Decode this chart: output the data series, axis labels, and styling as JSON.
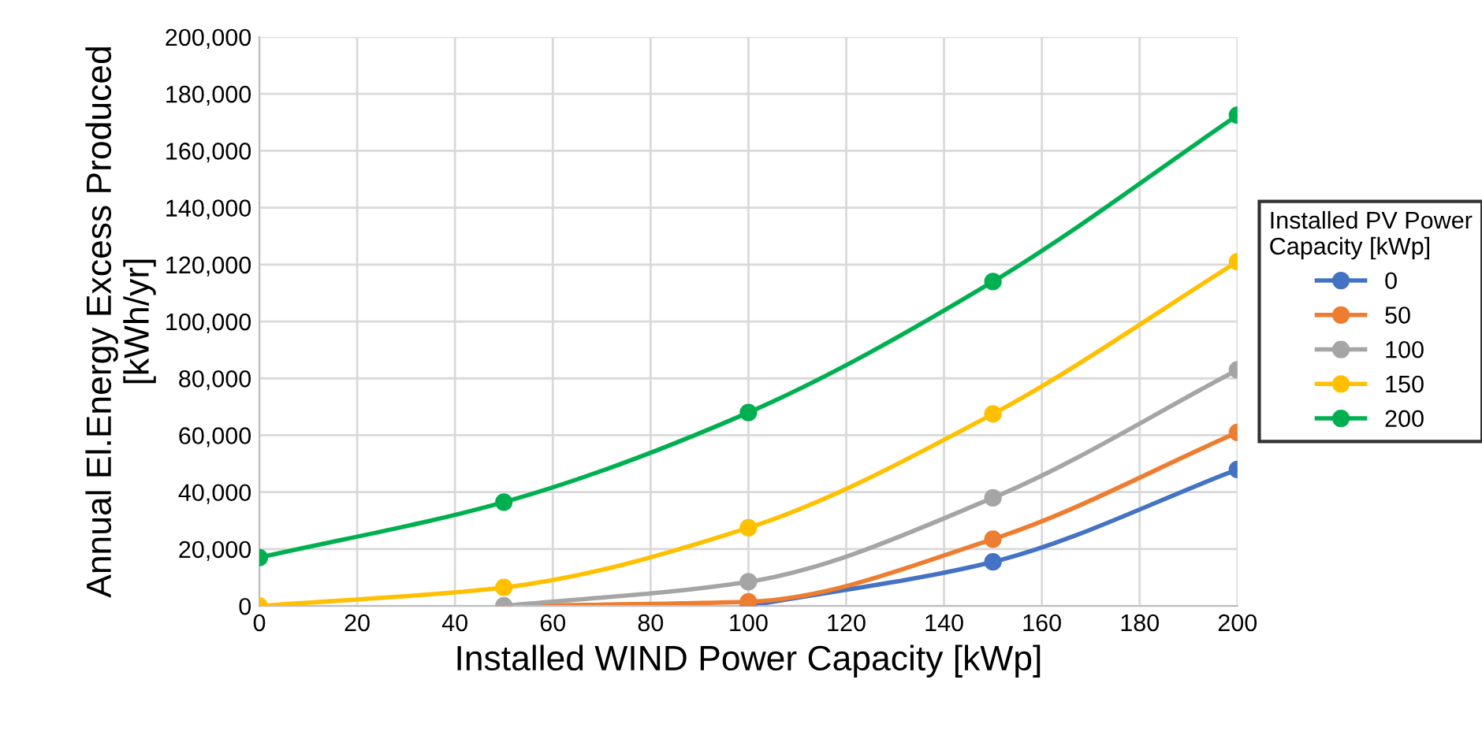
{
  "chart_data": {
    "type": "line",
    "xlabel": "Installed WIND Power Capacity [kWp]",
    "ylabel": "Annual El.Energy Excess Produced\n[kWh/yr]",
    "legend_title": "Installed PV Power\nCapacity [kWp]",
    "x": [
      0,
      50,
      100,
      150,
      200
    ],
    "series": [
      {
        "name": "0",
        "color": "#4472c4",
        "values": [
          null,
          null,
          0,
          15500,
          48000
        ]
      },
      {
        "name": "50",
        "color": "#ed7d31",
        "values": [
          null,
          0,
          1500,
          23500,
          61000
        ]
      },
      {
        "name": "100",
        "color": "#a5a5a5",
        "values": [
          null,
          0,
          8500,
          38000,
          83000
        ]
      },
      {
        "name": "150",
        "color": "#ffc000",
        "values": [
          0,
          6500,
          27500,
          67500,
          121000
        ]
      },
      {
        "name": "200",
        "color": "#00b050",
        "values": [
          17000,
          36500,
          68000,
          114000,
          172500
        ]
      }
    ],
    "xlim": [
      0,
      200
    ],
    "xticks": [
      0,
      20,
      40,
      60,
      80,
      100,
      120,
      140,
      160,
      180,
      200
    ],
    "ylim": [
      0,
      200000
    ],
    "yticks": [
      {
        "value": 0,
        "label": "0"
      },
      {
        "value": 20000,
        "label": "20,000"
      },
      {
        "value": 40000,
        "label": "40,000"
      },
      {
        "value": 60000,
        "label": "60,000"
      },
      {
        "value": 80000,
        "label": "80,000"
      },
      {
        "value": 100000,
        "label": "100,000"
      },
      {
        "value": 120000,
        "label": "120,000"
      },
      {
        "value": 140000,
        "label": "140,000"
      },
      {
        "value": 160000,
        "label": "160,000"
      },
      {
        "value": 180000,
        "label": "180,000"
      },
      {
        "value": 200000,
        "label": "200,000"
      }
    ],
    "grid": true,
    "legend": "right",
    "marker": "circle",
    "line_style": "solid"
  }
}
